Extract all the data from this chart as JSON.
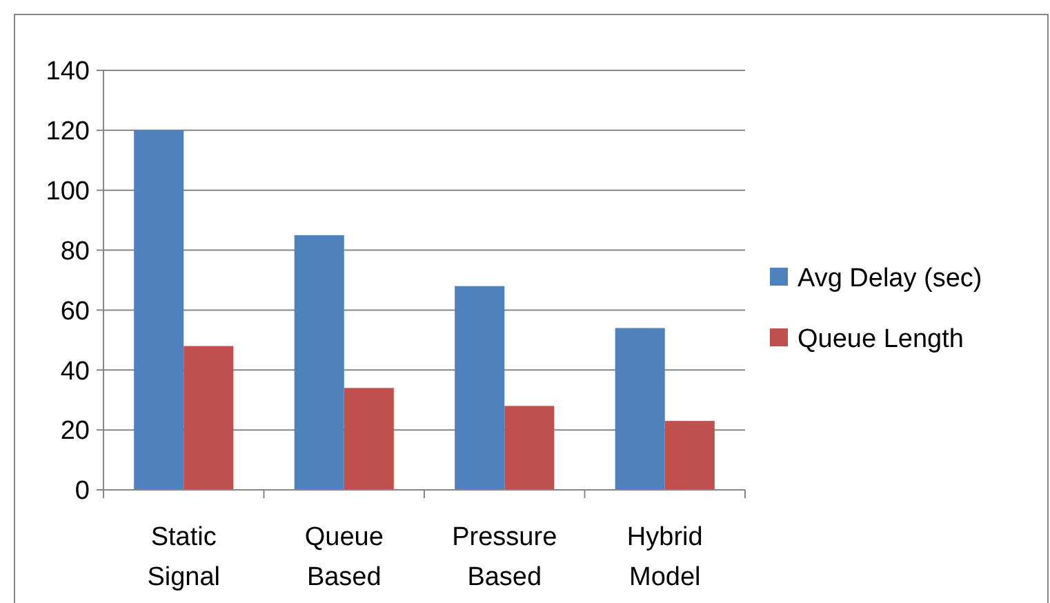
{
  "chart_data": {
    "type": "bar",
    "categories": [
      "Static Signal",
      "Queue Based",
      "Pressure Based",
      "Hybrid Model"
    ],
    "series": [
      {
        "name": "Avg Delay (sec)",
        "color": "#4f81bd",
        "values": [
          120,
          85,
          68,
          54
        ]
      },
      {
        "name": "Queue Length",
        "color": "#c0504d",
        "values": [
          48,
          34,
          28,
          23
        ]
      }
    ],
    "ylim": [
      0,
      140
    ],
    "yticks": [
      0,
      20,
      40,
      60,
      80,
      100,
      120,
      140
    ],
    "grid": "y",
    "legend": "right"
  }
}
